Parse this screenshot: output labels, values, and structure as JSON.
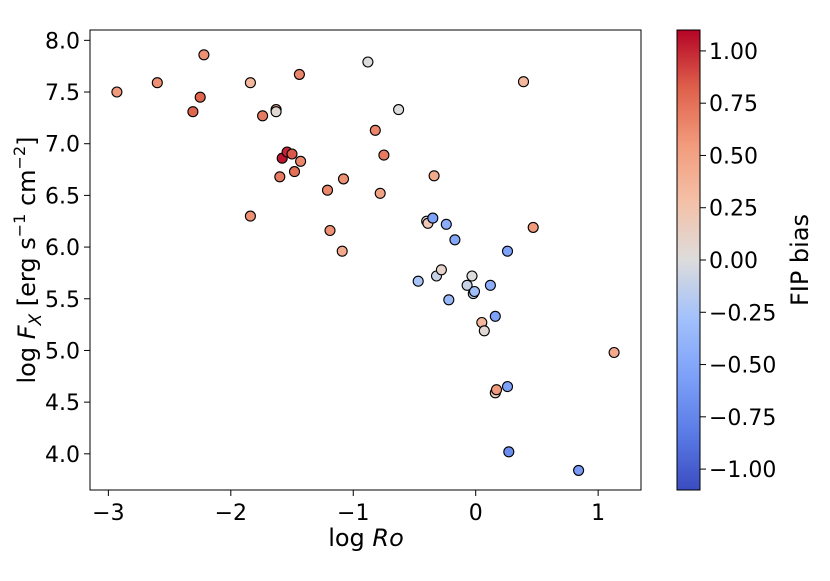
{
  "chart_data": {
    "type": "scatter",
    "xlabel": "log Ro",
    "ylabel": "log F_X [erg s^-1 cm^-2]",
    "xlim": [
      -3.15,
      1.35
    ],
    "ylim": [
      3.65,
      8.1
    ],
    "x_ticks": [
      -3,
      -2,
      -1,
      0,
      1
    ],
    "x_tick_labels": [
      "−3",
      "−2",
      "−1",
      "0",
      "1"
    ],
    "y_ticks": [
      4.0,
      4.5,
      5.0,
      5.5,
      6.0,
      6.5,
      7.0,
      7.5,
      8.0
    ],
    "y_tick_labels": [
      "4.0",
      "4.5",
      "5.0",
      "5.5",
      "6.0",
      "6.5",
      "7.0",
      "7.5",
      "8.0"
    ],
    "grid": false,
    "colorbar": {
      "label": "FIP bias",
      "colormap": "coolwarm",
      "range": [
        -1.1,
        1.1
      ],
      "ticks": [
        1.0,
        0.75,
        0.5,
        0.25,
        0.0,
        -0.25,
        -0.5,
        -0.75,
        -1.0
      ],
      "tick_labels": [
        "1.00",
        "0.75",
        "0.50",
        "0.25",
        "0.00",
        "−0.25",
        "−0.50",
        "−0.75",
        "−1.00"
      ]
    },
    "points": [
      {
        "x": -2.93,
        "y": 7.5,
        "fip": 0.55
      },
      {
        "x": -2.6,
        "y": 7.59,
        "fip": 0.6
      },
      {
        "x": -2.31,
        "y": 7.31,
        "fip": 0.8
      },
      {
        "x": -2.25,
        "y": 7.45,
        "fip": 0.8
      },
      {
        "x": -2.22,
        "y": 7.86,
        "fip": 0.6
      },
      {
        "x": -1.84,
        "y": 7.59,
        "fip": 0.35
      },
      {
        "x": -1.84,
        "y": 6.3,
        "fip": 0.6
      },
      {
        "x": -1.74,
        "y": 7.27,
        "fip": 0.7
      },
      {
        "x": -1.63,
        "y": 7.33,
        "fip": 0.4
      },
      {
        "x": -1.63,
        "y": 7.31,
        "fip": 0.05
      },
      {
        "x": -1.6,
        "y": 6.68,
        "fip": 0.7
      },
      {
        "x": -1.58,
        "y": 6.86,
        "fip": 1.05
      },
      {
        "x": -1.54,
        "y": 6.92,
        "fip": 1.0
      },
      {
        "x": -1.5,
        "y": 6.9,
        "fip": 0.85
      },
      {
        "x": -1.48,
        "y": 6.73,
        "fip": 0.75
      },
      {
        "x": -1.44,
        "y": 7.67,
        "fip": 0.65
      },
      {
        "x": -1.43,
        "y": 6.83,
        "fip": 0.65
      },
      {
        "x": -1.21,
        "y": 6.55,
        "fip": 0.65
      },
      {
        "x": -1.19,
        "y": 6.16,
        "fip": 0.6
      },
      {
        "x": -1.08,
        "y": 6.66,
        "fip": 0.6
      },
      {
        "x": -1.09,
        "y": 5.96,
        "fip": 0.45
      },
      {
        "x": -0.88,
        "y": 7.79,
        "fip": 0.0
      },
      {
        "x": -0.82,
        "y": 7.13,
        "fip": 0.65
      },
      {
        "x": -0.78,
        "y": 6.52,
        "fip": 0.5
      },
      {
        "x": -0.75,
        "y": 6.89,
        "fip": 0.7
      },
      {
        "x": -0.63,
        "y": 7.33,
        "fip": 0.0
      },
      {
        "x": -0.47,
        "y": 5.67,
        "fip": -0.25
      },
      {
        "x": -0.4,
        "y": 6.25,
        "fip": 0.0
      },
      {
        "x": -0.39,
        "y": 6.23,
        "fip": 0.2
      },
      {
        "x": -0.35,
        "y": 6.28,
        "fip": -0.55
      },
      {
        "x": -0.34,
        "y": 6.69,
        "fip": 0.45
      },
      {
        "x": -0.32,
        "y": 5.72,
        "fip": -0.1
      },
      {
        "x": -0.28,
        "y": 5.78,
        "fip": 0.1
      },
      {
        "x": -0.24,
        "y": 6.22,
        "fip": -0.45
      },
      {
        "x": -0.22,
        "y": 5.49,
        "fip": -0.35
      },
      {
        "x": -0.17,
        "y": 6.07,
        "fip": -0.5
      },
      {
        "x": -0.07,
        "y": 5.63,
        "fip": -0.1
      },
      {
        "x": -0.03,
        "y": 5.72,
        "fip": 0.0
      },
      {
        "x": -0.02,
        "y": 5.55,
        "fip": -0.15
      },
      {
        "x": -0.01,
        "y": 5.57,
        "fip": -0.3
      },
      {
        "x": 0.05,
        "y": 5.27,
        "fip": 0.35
      },
      {
        "x": 0.07,
        "y": 5.19,
        "fip": 0.05
      },
      {
        "x": 0.12,
        "y": 5.63,
        "fip": -0.45
      },
      {
        "x": 0.16,
        "y": 5.33,
        "fip": -0.55
      },
      {
        "x": 0.16,
        "y": 4.59,
        "fip": 0.15
      },
      {
        "x": 0.17,
        "y": 4.62,
        "fip": 0.55
      },
      {
        "x": 0.26,
        "y": 5.96,
        "fip": -0.55
      },
      {
        "x": 0.26,
        "y": 4.65,
        "fip": -0.55
      },
      {
        "x": 0.27,
        "y": 4.02,
        "fip": -0.7
      },
      {
        "x": 0.39,
        "y": 7.6,
        "fip": 0.35
      },
      {
        "x": 0.47,
        "y": 6.19,
        "fip": 0.55
      },
      {
        "x": 0.84,
        "y": 3.84,
        "fip": -0.6
      },
      {
        "x": 1.13,
        "y": 4.98,
        "fip": 0.45
      }
    ]
  }
}
